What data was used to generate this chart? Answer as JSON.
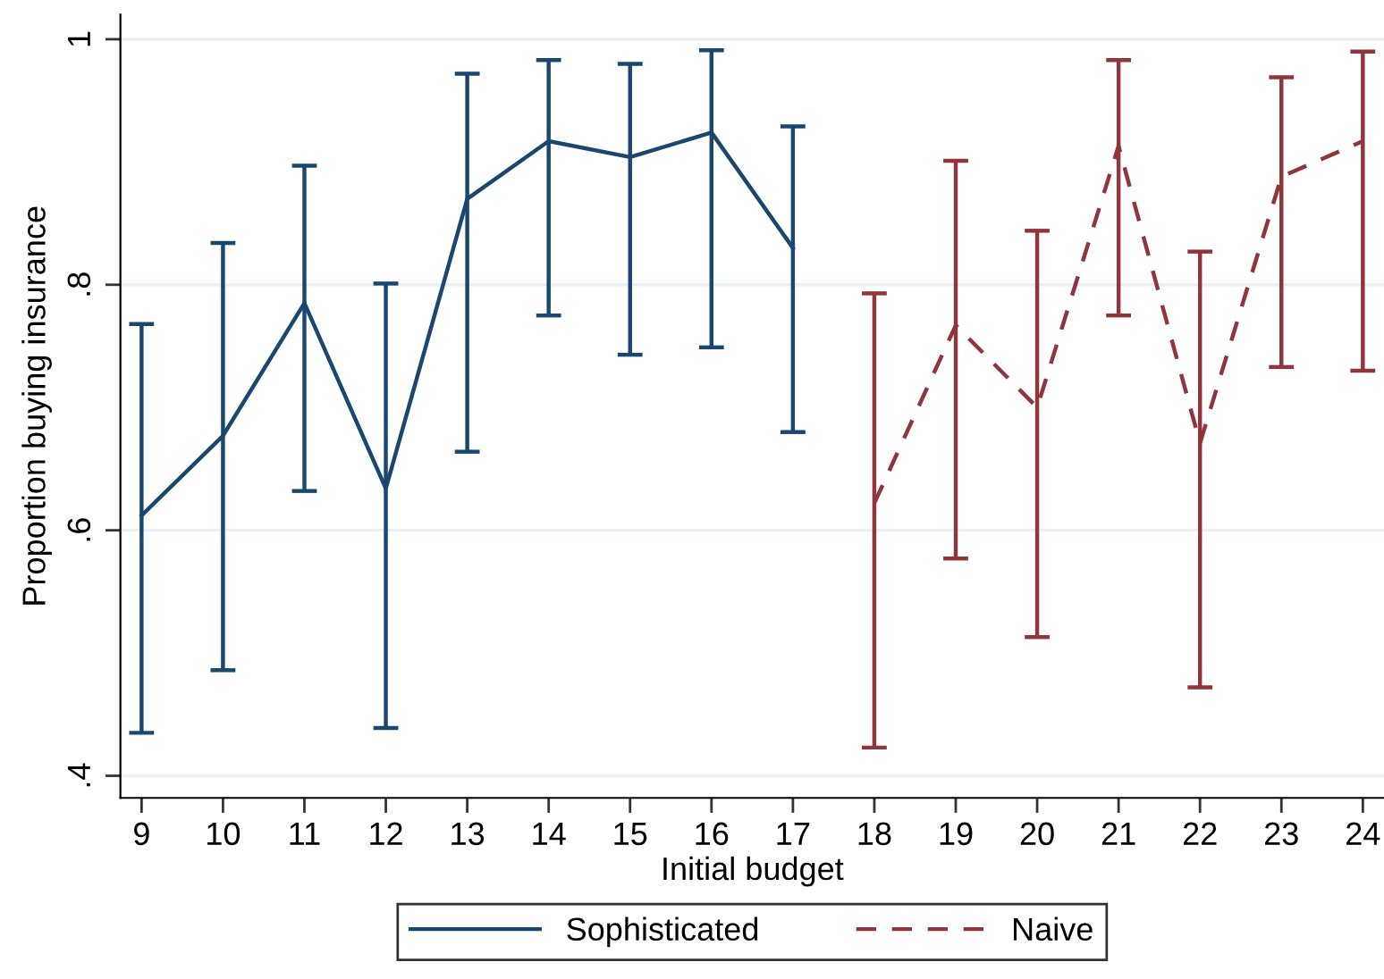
{
  "chart_data": {
    "type": "line",
    "xlabel": "Initial budget",
    "ylabel": "Proportion buying insurance",
    "xlim": [
      8.74,
      24.26
    ],
    "xticks": [
      9,
      10,
      11,
      12,
      13,
      14,
      15,
      16,
      17,
      18,
      19,
      20,
      21,
      22,
      23,
      24
    ],
    "ylim": [
      0.382,
      1.02
    ],
    "yticks": [
      {
        "value": 0.4,
        "label": ".4"
      },
      {
        "value": 0.6,
        "label": ".6"
      },
      {
        "value": 0.8,
        "label": ".8"
      },
      {
        "value": 1,
        "label": "1"
      }
    ],
    "grid": "y",
    "legend": "bottom",
    "marker": "none",
    "series": [
      {
        "name": "Sophisticated",
        "color": "#1a476f",
        "line_style": "solid",
        "x": [
          9,
          10,
          11,
          12,
          13,
          14,
          15,
          16,
          17
        ],
        "values": [
          0.612,
          0.677,
          0.785,
          0.634,
          0.87,
          0.917,
          0.904,
          0.924,
          0.83
        ],
        "errors": [
          [
            0.435,
            0.768
          ],
          [
            0.486,
            0.834
          ],
          [
            0.632,
            0.897
          ],
          [
            0.439,
            0.801
          ],
          [
            0.664,
            0.972
          ],
          [
            0.775,
            0.983
          ],
          [
            0.743,
            0.98
          ],
          [
            0.749,
            0.991
          ],
          [
            0.68,
            0.929
          ]
        ]
      },
      {
        "name": "Naive",
        "color": "#90353b",
        "line_style": "dashed",
        "x": [
          18,
          19,
          20,
          21,
          22,
          23,
          24
        ],
        "values": [
          0.622,
          0.767,
          0.7,
          0.913,
          0.671,
          0.888,
          0.917
        ],
        "errors": [
          [
            0.423,
            0.793
          ],
          [
            0.577,
            0.901
          ],
          [
            0.513,
            0.844
          ],
          [
            0.775,
            0.983
          ],
          [
            0.472,
            0.827
          ],
          [
            0.733,
            0.969
          ],
          [
            0.73,
            0.99
          ]
        ]
      }
    ]
  }
}
